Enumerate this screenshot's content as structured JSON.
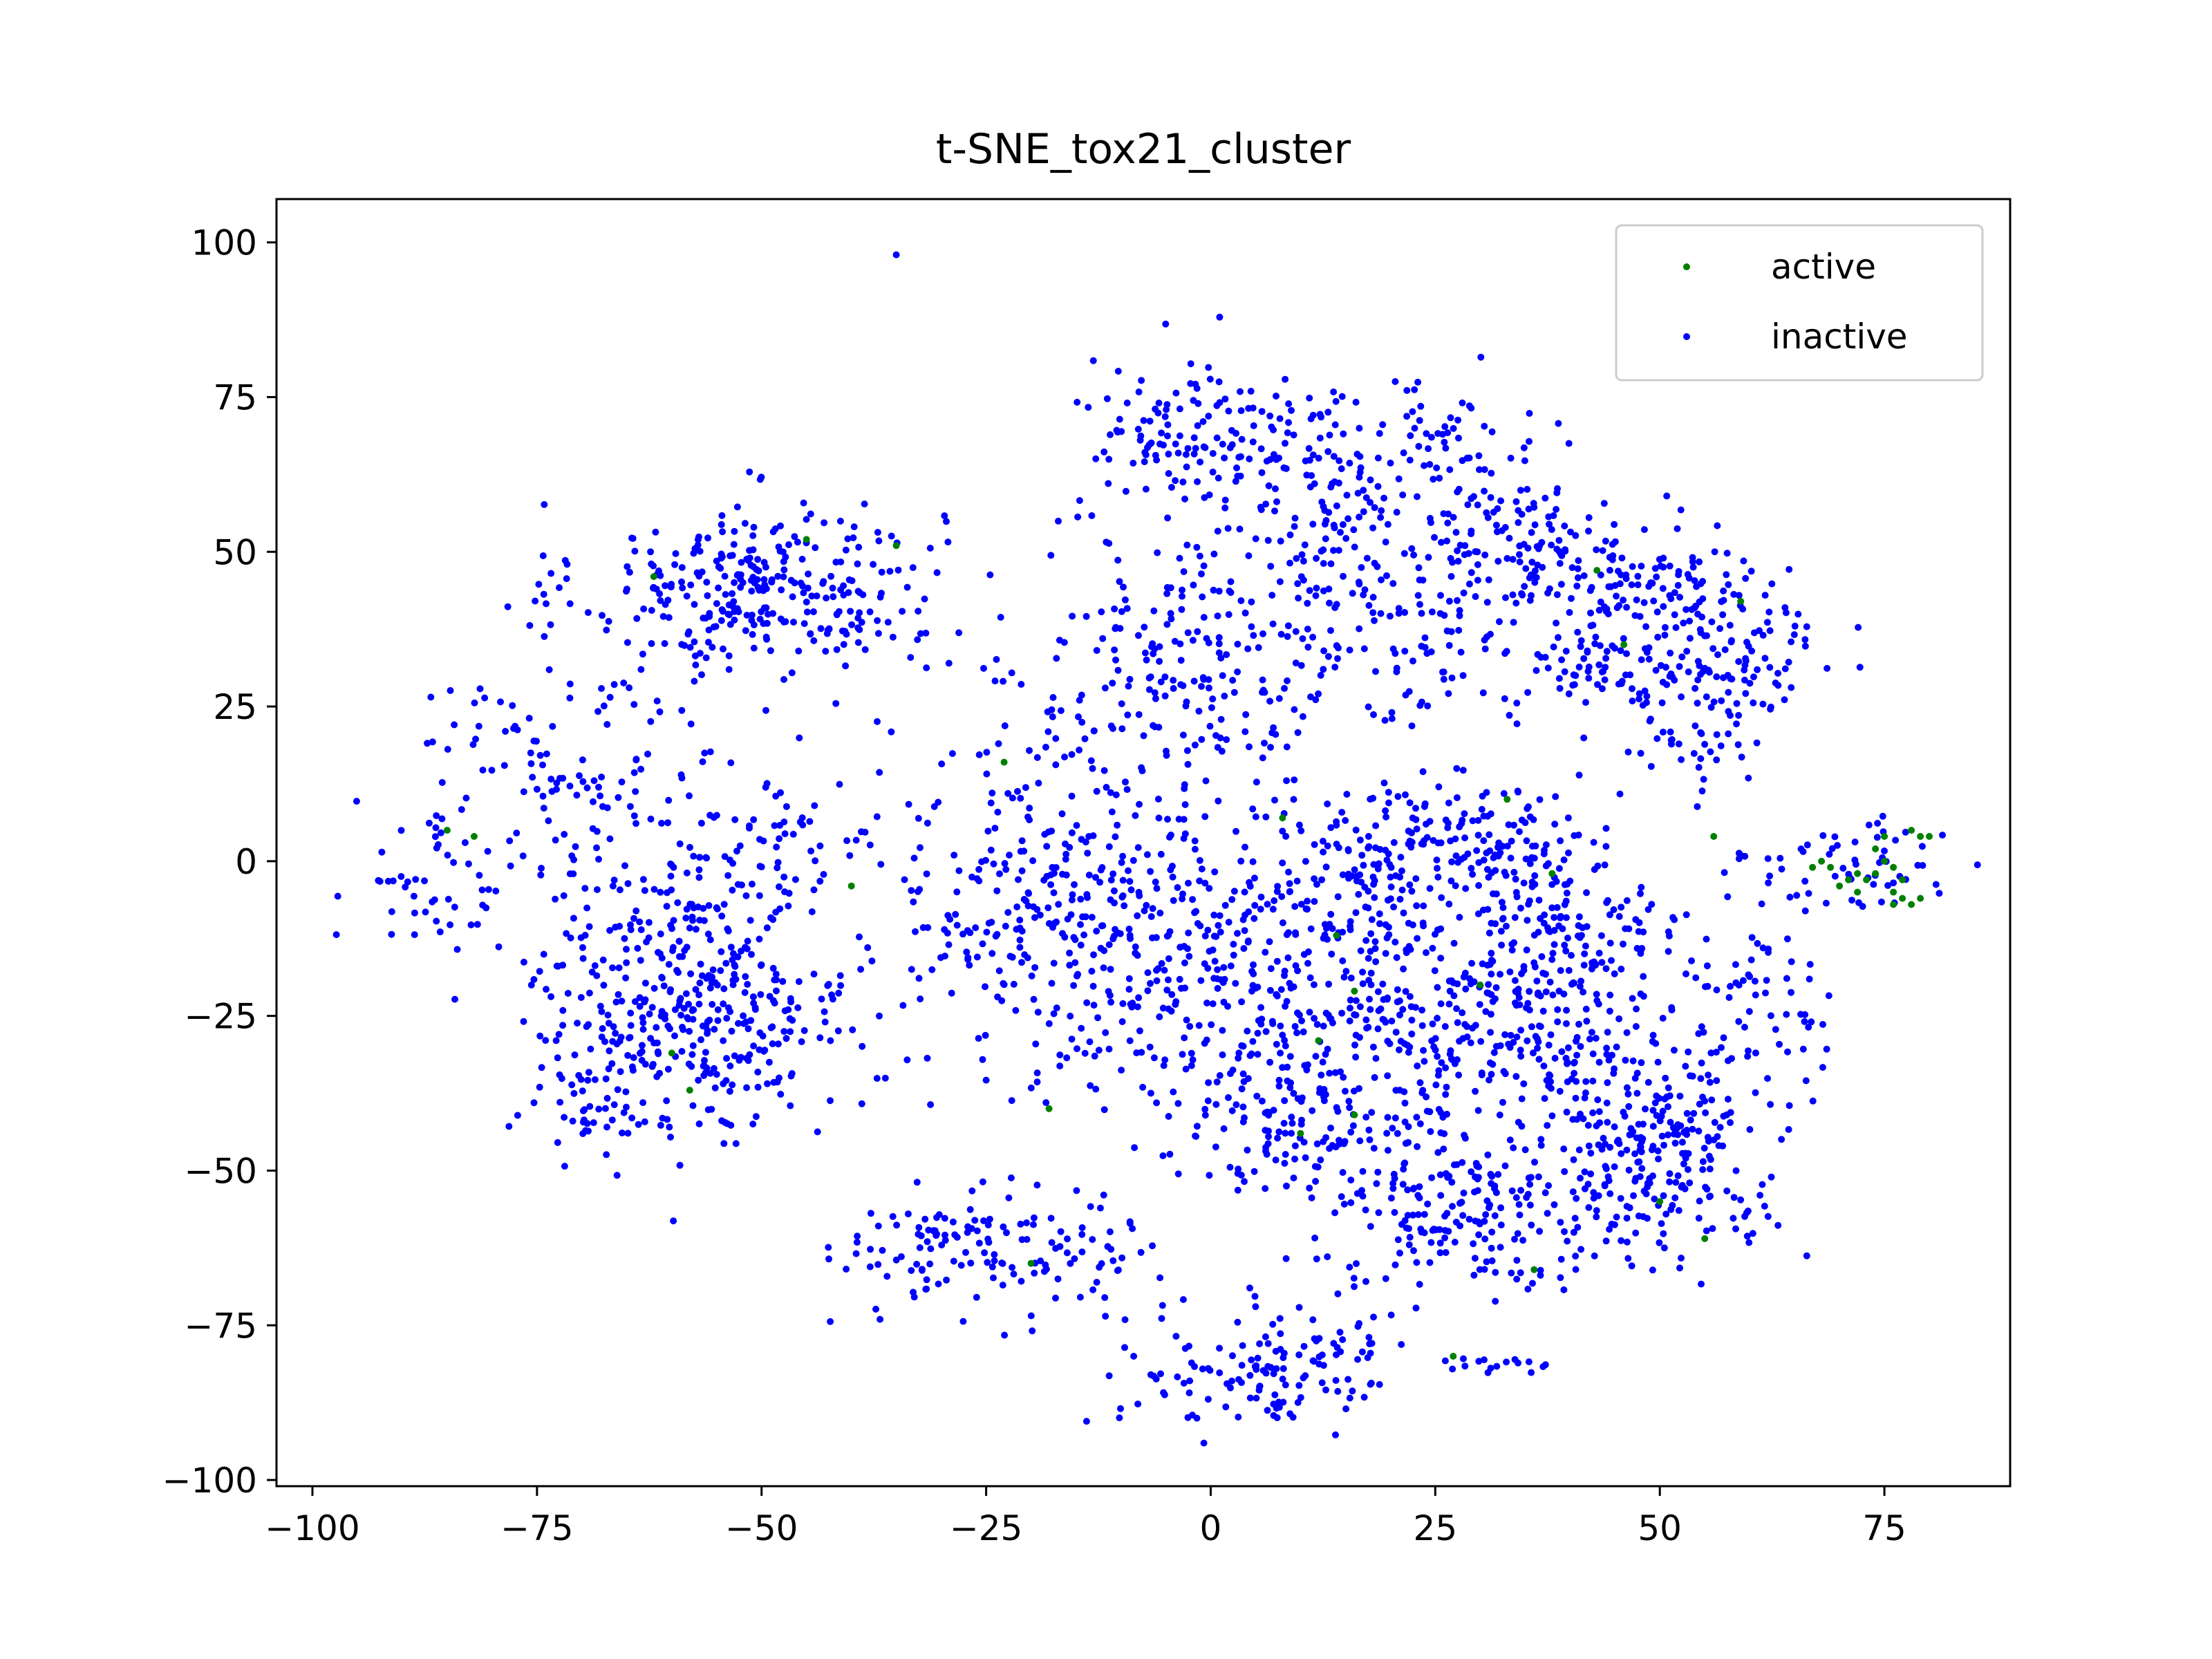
{
  "chart_data": {
    "type": "scatter",
    "title": "t-SNE_tox21_cluster",
    "xlabel": "",
    "ylabel": "",
    "xlim": [
      -104,
      89
    ],
    "ylim": [
      -101,
      107
    ],
    "x_ticks": [
      -100,
      -75,
      -50,
      -25,
      0,
      25,
      50,
      75
    ],
    "y_ticks": [
      -100,
      -75,
      -50,
      -25,
      0,
      25,
      50,
      75,
      100
    ],
    "x_tick_labels": [
      "−100",
      "−75",
      "−50",
      "−25",
      "0",
      "25",
      "50",
      "75"
    ],
    "y_tick_labels": [
      "−100",
      "−75",
      "−50",
      "−25",
      "0",
      "25",
      "50",
      "75",
      "100"
    ],
    "grid": false,
    "legend": {
      "position": "top-right"
    },
    "series": [
      {
        "name": "active",
        "color": "#008000",
        "points": [
          [
            -85,
            5
          ],
          [
            -82,
            4
          ],
          [
            -62,
            46
          ],
          [
            -35,
            51
          ],
          [
            -45,
            52
          ],
          [
            -58,
            -37
          ],
          [
            -60,
            -31
          ],
          [
            -40,
            -4
          ],
          [
            -23,
            16
          ],
          [
            -18,
            -40
          ],
          [
            -20,
            -65
          ],
          [
            8,
            7
          ],
          [
            14,
            -12
          ],
          [
            16,
            -21
          ],
          [
            12,
            -29
          ],
          [
            16,
            -41
          ],
          [
            10,
            -44
          ],
          [
            30,
            -20
          ],
          [
            27,
            -80
          ],
          [
            36,
            -66
          ],
          [
            43,
            47
          ],
          [
            46,
            35
          ],
          [
            59,
            42
          ],
          [
            56,
            4
          ],
          [
            50,
            -55
          ],
          [
            55,
            -61
          ],
          [
            33,
            10
          ],
          [
            38,
            -2
          ],
          [
            68,
            0
          ],
          [
            69,
            -1
          ],
          [
            70,
            -4
          ],
          [
            71,
            -3
          ],
          [
            72,
            -5
          ],
          [
            73,
            -3
          ],
          [
            74,
            2
          ],
          [
            74,
            -2
          ],
          [
            75,
            4
          ],
          [
            75,
            0
          ],
          [
            76,
            -1
          ],
          [
            76,
            -5
          ],
          [
            77,
            -6
          ],
          [
            77,
            -3
          ],
          [
            78,
            -7
          ],
          [
            78,
            5
          ],
          [
            79,
            4
          ],
          [
            80,
            4
          ],
          [
            79,
            -6
          ],
          [
            76,
            -7
          ],
          [
            72,
            -2
          ],
          [
            67,
            -1
          ]
        ]
      },
      {
        "name": "inactive",
        "color": "#0000ff",
        "points": [
          [
            -35,
            98
          ]
        ],
        "clusters": [
          {
            "cx": -50,
            "cy": 44,
            "sx": 10,
            "sy": 7,
            "n": 320
          },
          {
            "cx": -58,
            "cy": -22,
            "sx": 9,
            "sy": 11,
            "n": 430
          },
          {
            "cx": -72,
            "cy": 15,
            "sx": 10,
            "sy": 9,
            "n": 120
          },
          {
            "cx": -48,
            "cy": 3,
            "sx": 6,
            "sy": 6,
            "n": 60
          },
          {
            "cx": -88,
            "cy": -5,
            "sx": 5,
            "sy": 6,
            "n": 40
          },
          {
            "cx": -68,
            "cy": -40,
            "sx": 5,
            "sy": 4,
            "n": 35
          },
          {
            "cx": -27,
            "cy": -63,
            "sx": 7,
            "sy": 5,
            "n": 120
          },
          {
            "cx": -14,
            "cy": -62,
            "sx": 4,
            "sy": 6,
            "n": 25
          },
          {
            "cx": 6,
            "cy": -82,
            "sx": 8,
            "sy": 5,
            "n": 130
          },
          {
            "cx": -3,
            "cy": 68,
            "sx": 6,
            "sy": 6,
            "n": 110
          },
          {
            "cx": 12,
            "cy": 62,
            "sx": 7,
            "sy": 8,
            "n": 130
          },
          {
            "cx": 25,
            "cy": 65,
            "sx": 6,
            "sy": 6,
            "n": 60
          },
          {
            "cx": 35,
            "cy": 52,
            "sx": 5,
            "sy": 5,
            "n": 80
          },
          {
            "cx": 48,
            "cy": 45,
            "sx": 7,
            "sy": 5,
            "n": 120
          },
          {
            "cx": 42,
            "cy": 32,
            "sx": 4,
            "sy": 4,
            "n": 55
          },
          {
            "cx": 55,
            "cy": 25,
            "sx": 5,
            "sy": 8,
            "n": 110
          },
          {
            "cx": 59,
            "cy": 36,
            "sx": 5,
            "sy": 4,
            "n": 40
          },
          {
            "cx": 20,
            "cy": 40,
            "sx": 10,
            "sy": 9,
            "n": 170
          },
          {
            "cx": -3,
            "cy": 30,
            "sx": 9,
            "sy": 10,
            "n": 170
          },
          {
            "cx": -18,
            "cy": -5,
            "sx": 10,
            "sy": 14,
            "n": 300
          },
          {
            "cx": 5,
            "cy": -15,
            "sx": 12,
            "sy": 13,
            "n": 400
          },
          {
            "cx": 25,
            "cy": 3,
            "sx": 8,
            "sy": 5,
            "n": 180
          },
          {
            "cx": 30,
            "cy": -25,
            "sx": 9,
            "sy": 10,
            "n": 250
          },
          {
            "cx": 10,
            "cy": -42,
            "sx": 8,
            "sy": 6,
            "n": 160
          },
          {
            "cx": 30,
            "cy": -57,
            "sx": 8,
            "sy": 6,
            "n": 180
          },
          {
            "cx": 50,
            "cy": -45,
            "sx": 7,
            "sy": 9,
            "n": 280
          },
          {
            "cx": 40,
            "cy": -20,
            "sx": 6,
            "sy": 8,
            "n": 80
          },
          {
            "cx": 38,
            "cy": -8,
            "sx": 4,
            "sy": 5,
            "n": 40
          },
          {
            "cx": 62,
            "cy": -22,
            "sx": 4,
            "sy": 7,
            "n": 55
          },
          {
            "cx": 48,
            "cy": -12,
            "sx": 3,
            "sy": 3,
            "n": 25
          },
          {
            "cx": 73,
            "cy": -1,
            "sx": 4,
            "sy": 4,
            "n": 45
          },
          {
            "cx": 62,
            "cy": 0,
            "sx": 3,
            "sy": 3,
            "n": 15
          },
          {
            "cx": 32,
            "cy": -81,
            "sx": 3,
            "sy": 1,
            "n": 15
          },
          {
            "cx": 14,
            "cy": -79,
            "sx": 3,
            "sy": 2,
            "n": 12
          }
        ]
      }
    ]
  }
}
